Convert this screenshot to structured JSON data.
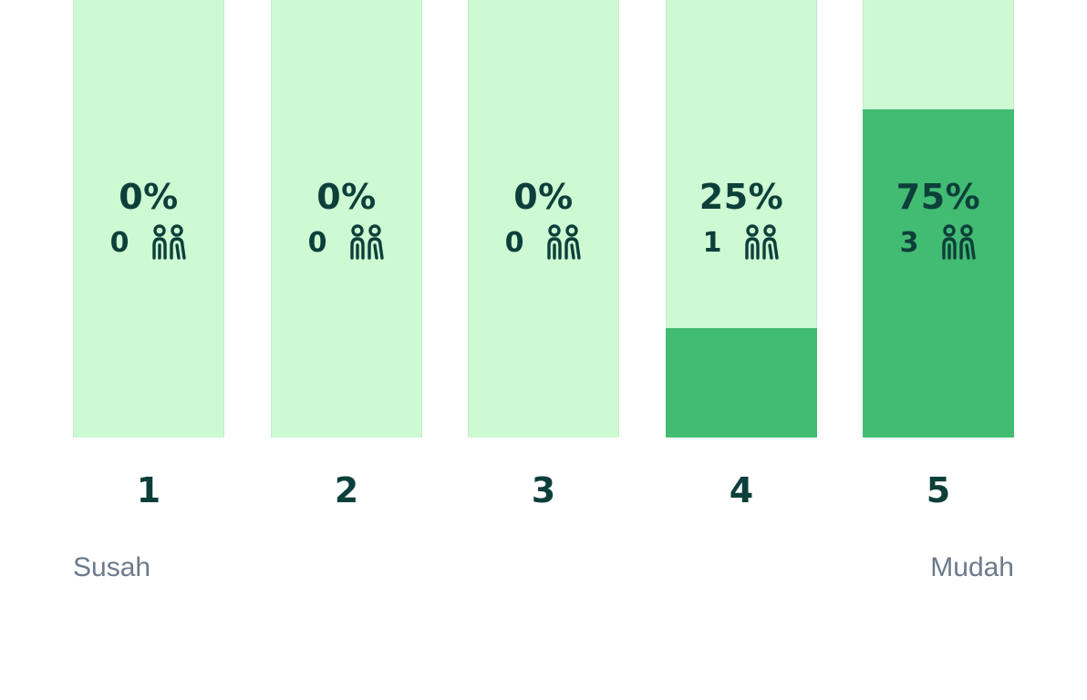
{
  "colors": {
    "track": "#cdf9d3",
    "fill": "#42bb73",
    "text": "#0d3f3a",
    "scale_text": "#6c7a8c"
  },
  "chart_data": {
    "type": "bar",
    "categories": [
      "1",
      "2",
      "3",
      "4",
      "5"
    ],
    "values": [
      0,
      0,
      0,
      25,
      75
    ],
    "value_labels": [
      "0%",
      "0%",
      "0%",
      "25%",
      "75%"
    ],
    "counts": [
      0,
      0,
      0,
      1,
      3
    ],
    "count_icon": "people-icon",
    "ylim": [
      0,
      100
    ],
    "scale_min_label": "Susah",
    "scale_max_label": "Mudah"
  }
}
